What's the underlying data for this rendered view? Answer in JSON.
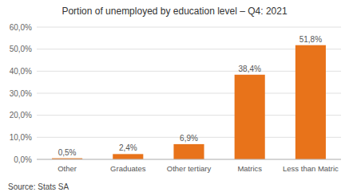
{
  "chart_data": {
    "type": "bar",
    "title": "Portion of unemployed by education level – Q4: 2021",
    "categories": [
      "Other",
      "Graduates",
      "Other tertiary",
      "Matrics",
      "Less than Matric"
    ],
    "values": [
      0.5,
      2.4,
      6.9,
      38.4,
      51.8
    ],
    "value_labels": [
      "0,5%",
      "2,4%",
      "6,9%",
      "38,4%",
      "51,8%"
    ],
    "data_labels": true,
    "color": "#E8731A",
    "ylim": [
      0,
      60
    ],
    "yticks": [
      {
        "value": 0,
        "label": "0,0%"
      },
      {
        "value": 10,
        "label": "10,0%"
      },
      {
        "value": 20,
        "label": "20,0%"
      },
      {
        "value": 30,
        "label": "30,0%"
      },
      {
        "value": 40,
        "label": "40,0%"
      },
      {
        "value": 50,
        "label": "50,0%"
      },
      {
        "value": 60,
        "label": "60,0%"
      }
    ],
    "grid": true,
    "source": "Source: Stats SA"
  }
}
